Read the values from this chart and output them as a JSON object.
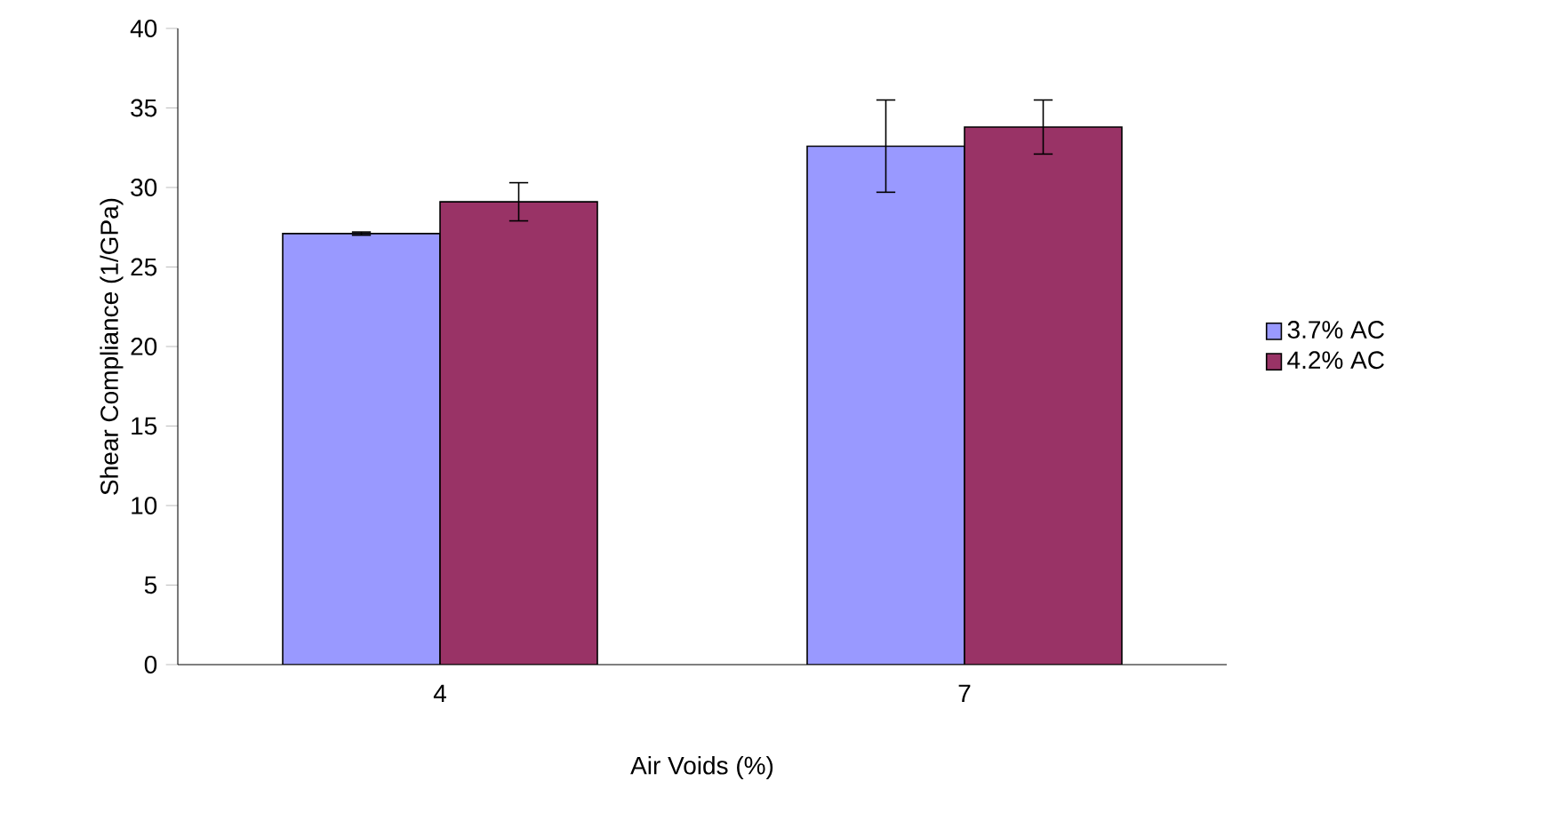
{
  "chart_data": {
    "type": "bar",
    "xlabel": "Air Voids (%)",
    "ylabel": "Shear Compliance (1/GPa)",
    "categories": [
      "4",
      "7"
    ],
    "series": [
      {
        "name": "3.7% AC",
        "color": "#9999ff",
        "values": [
          27.1,
          32.6
        ],
        "errors": [
          0.1,
          2.9
        ]
      },
      {
        "name": "4.2% AC",
        "color": "#993366",
        "values": [
          29.1,
          33.8
        ],
        "errors": [
          1.2,
          1.7
        ]
      }
    ],
    "ylim": [
      0,
      40
    ],
    "yticks": [
      0,
      5,
      10,
      15,
      20,
      25,
      30,
      35,
      40
    ],
    "legend": "right"
  }
}
